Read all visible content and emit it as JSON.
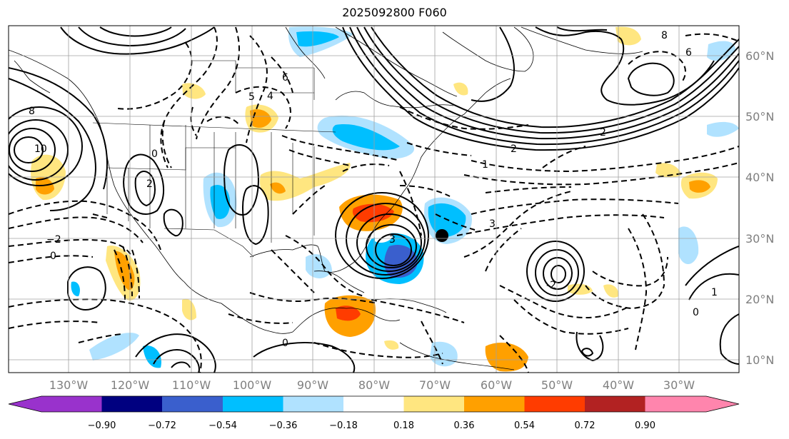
{
  "title": "2025092800 F060",
  "map": {
    "lon_labels": [
      "130°W",
      "120°W",
      "110°W",
      "100°W",
      "90°W",
      "80°W",
      "70°W",
      "60°W",
      "50°W",
      "40°W",
      "30°W"
    ],
    "lat_labels": [
      "60°N",
      "50°N",
      "40°N",
      "30°N",
      "20°N",
      "10°N"
    ],
    "marker": {
      "label": "storm-center",
      "lon": -69,
      "lat": 30.2
    }
  },
  "colorbar": {
    "ticks": [
      "−0.90",
      "−0.72",
      "−0.54",
      "−0.36",
      "−0.18",
      "0.18",
      "0.36",
      "0.54",
      "0.72",
      "0.90"
    ],
    "under_color": "#9932cc",
    "over_color": "#ff85ad",
    "colors": [
      "#000080",
      "#3a5fcd",
      "#00bfff",
      "#b0e2ff",
      "#ffffff",
      "#ffe680",
      "#ffa000",
      "#ff3c00",
      "#b22222"
    ]
  },
  "contour_labels": [
    "10",
    "8",
    "6",
    "4",
    "2",
    "0",
    "−2",
    "-2",
    "3",
    "1",
    "5",
    "8",
    "6",
    "0",
    "2",
    "3",
    "0",
    "2",
    "1",
    "0"
  ],
  "colors": {
    "warm": "#ffa000",
    "cold": "#00bfff",
    "land": "#000000"
  }
}
